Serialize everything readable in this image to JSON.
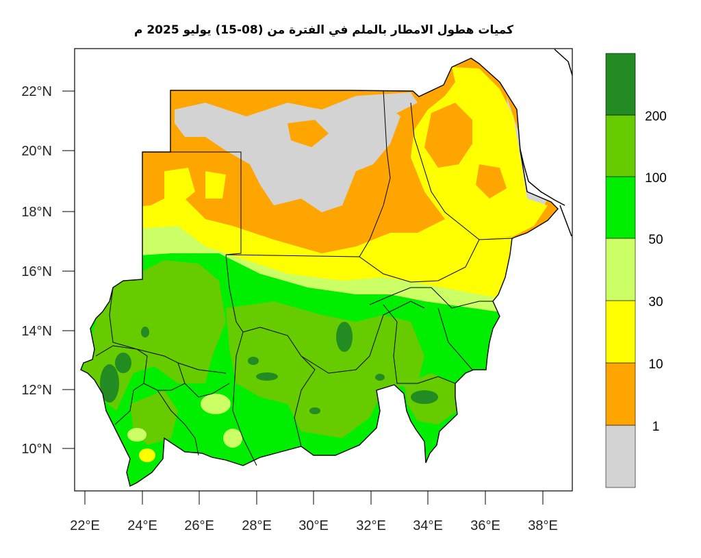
{
  "title": "كميات هطول الامطار بالملم في الفترة من (08-15) يوليو 2025 م",
  "x_ticks": [
    "22°E",
    "24°E",
    "26°E",
    "28°E",
    "30°E",
    "32°E",
    "34°E",
    "36°E",
    "38°E"
  ],
  "y_ticks": [
    "22°N",
    "20°N",
    "18°N",
    "16°N",
    "14°N",
    "12°N",
    "10°N"
  ],
  "legend": {
    "colors": [
      "#d3d3d3",
      "#ffa500",
      "#ffff00",
      "#ccff66",
      "#00ee00",
      "#66cc00",
      "#228b22"
    ],
    "labels": [
      "1",
      "10",
      "30",
      "50",
      "100",
      "200"
    ]
  },
  "colors": {
    "gray": "#d3d3d3",
    "orange": "#ffa500",
    "yellow": "#ffff00",
    "lightgreen": "#ccff66",
    "green": "#00ee00",
    "midgreen": "#66cc00",
    "darkgreen": "#228b22"
  }
}
